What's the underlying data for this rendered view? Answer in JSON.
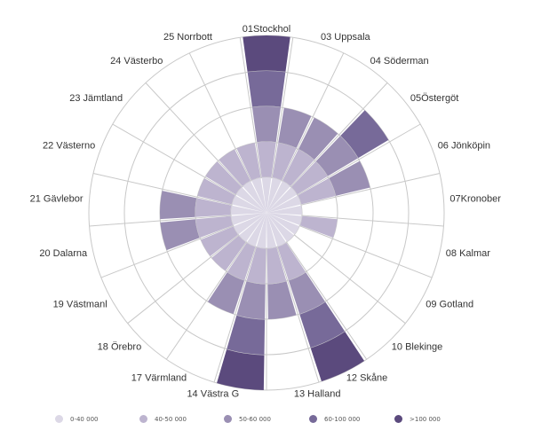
{
  "chart_data": {
    "type": "radial-bar",
    "title": "",
    "levels": [
      "0-40 000",
      "40-50 000",
      "50-60 000",
      "60-100 000",
      ">100 000"
    ],
    "colors": [
      "#dcd8e6",
      "#bdb4cf",
      "#9a8fb3",
      "#776a99",
      "#5b4a7d"
    ],
    "categories": [
      "01Stockhol",
      "03 Uppsala",
      "04 Söderman",
      "05Östergöt",
      "06 Jönköpin",
      "07Kronober",
      "08 Kalmar",
      "09 Gotland",
      "10 Blekinge",
      "12 Skåne",
      "13 Halland",
      "14 Västra G",
      "17 Värmland",
      "18 Örebro",
      "19 Västmanl",
      "20 Dalarna",
      "21 Gävlebor",
      "22 Västerno",
      "23 Jämtland",
      "24 Västerbo",
      "25 Norrbott"
    ],
    "values": [
      5,
      3,
      3,
      4,
      3,
      1,
      2,
      1,
      1,
      5,
      3,
      5,
      3,
      2,
      2,
      3,
      3,
      2,
      2,
      2,
      2
    ],
    "legend_position": "bottom"
  }
}
